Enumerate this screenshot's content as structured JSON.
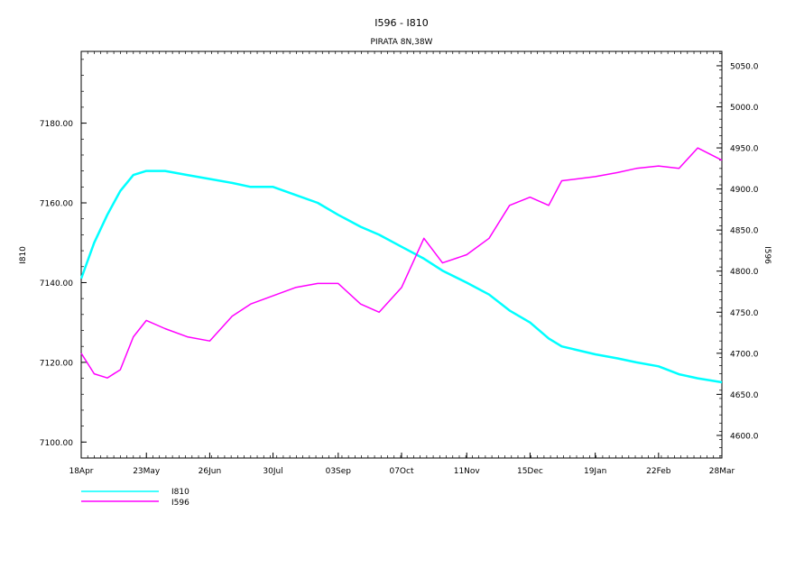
{
  "chart_data": {
    "type": "line",
    "title": "I596  -  I810",
    "subtitle": "PIRATA 8N,38W",
    "xlabel": "",
    "x_ticks": [
      "18Apr",
      "23May",
      "26Jun",
      "30Jul",
      "03Sep",
      "07Oct",
      "11Nov",
      "15Dec",
      "19Jan",
      "22Feb",
      "28Mar"
    ],
    "x_range": [
      "18Apr",
      "28Mar"
    ],
    "left_axis": {
      "label": "I810",
      "ticks": [
        "7100.00",
        "7120.00",
        "7140.00",
        "7160.00",
        "7180.00"
      ],
      "ylim": [
        7096,
        7198
      ]
    },
    "right_axis": {
      "label": "I596",
      "ticks": [
        "4600.0",
        "4650.0",
        "4700.0",
        "4750.0",
        "4800.0",
        "4850.0",
        "4900.0",
        "4950.0",
        "5000.0",
        "5050.0"
      ],
      "ylim": [
        4572.5,
        5067.5
      ]
    },
    "series": [
      {
        "name": "I810",
        "axis": "left",
        "color": "#00ffff",
        "x": [
          "18Apr",
          "25Apr",
          "02May",
          "09May",
          "16May",
          "23May",
          "02Jun",
          "14Jun",
          "26Jun",
          "08Jul",
          "18Jul",
          "30Jul",
          "11Aug",
          "23Aug",
          "03Sep",
          "15Sep",
          "25Sep",
          "07Oct",
          "19Oct",
          "29Oct",
          "11Nov",
          "23Nov",
          "04Dec",
          "15Dec",
          "25Dec",
          "01Jan",
          "19Jan",
          "31Jan",
          "10Feb",
          "22Feb",
          "05Mar",
          "15Mar",
          "28Mar"
        ],
        "values": [
          7141,
          7150,
          7157,
          7163,
          7167,
          7168,
          7168,
          7167,
          7166,
          7165,
          7164,
          7164,
          7162,
          7160,
          7157,
          7154,
          7152,
          7149,
          7146,
          7143,
          7140,
          7137,
          7133,
          7130,
          7126,
          7124,
          7122,
          7121,
          7120,
          7119,
          7117,
          7116,
          7115
        ]
      },
      {
        "name": "I596",
        "axis": "right",
        "color": "#ff00ff",
        "x": [
          "18Apr",
          "25Apr",
          "02May",
          "09May",
          "16May",
          "23May",
          "02Jun",
          "14Jun",
          "26Jun",
          "08Jul",
          "18Jul",
          "30Jul",
          "11Aug",
          "23Aug",
          "03Sep",
          "15Sep",
          "25Sep",
          "07Oct",
          "19Oct",
          "29Oct",
          "11Nov",
          "23Nov",
          "04Dec",
          "15Dec",
          "25Dec",
          "01Jan",
          "19Jan",
          "31Jan",
          "10Feb",
          "22Feb",
          "05Mar",
          "15Mar",
          "28Mar"
        ],
        "values": [
          4700,
          4675,
          4670,
          4680,
          4720,
          4740,
          4730,
          4720,
          4715,
          4745,
          4760,
          4770,
          4780,
          4785,
          4785,
          4760,
          4750,
          4780,
          4840,
          4810,
          4820,
          4840,
          4880,
          4890,
          4880,
          4910,
          4915,
          4920,
          4925,
          4928,
          4925,
          4950,
          4935
        ]
      }
    ]
  }
}
